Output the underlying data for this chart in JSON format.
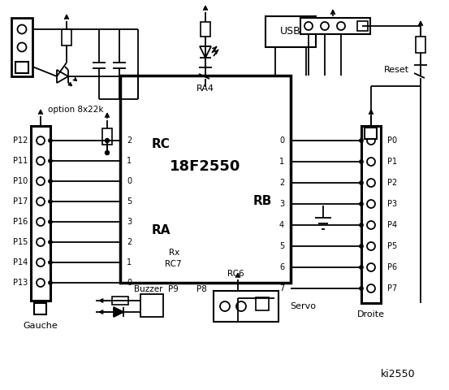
{
  "bg": "#ffffff",
  "lc": "#000000",
  "title": "ki2550",
  "chip_label": "18F2550",
  "chip_ra4": "RA4",
  "rc_label": "RC",
  "ra_label": "RA",
  "rb_label": "RB",
  "option_label": "option 8x22k",
  "usb_label": "USB",
  "reset_label": "Reset",
  "buzzer_label": "Buzzer",
  "servo_label": "Servo",
  "gauche_label": "Gauche",
  "droite_label": "Droite",
  "left_pins": [
    "P12",
    "P11",
    "P10",
    "P17",
    "P16",
    "P15",
    "P14",
    "P13"
  ],
  "right_pins": [
    "P0",
    "P1",
    "P2",
    "P3",
    "P4",
    "P5",
    "P6",
    "P7"
  ],
  "rc_pins": [
    "2",
    "1",
    "0",
    "5",
    "3",
    "2",
    "1",
    "0"
  ],
  "rb_pins": [
    "0",
    "1",
    "2",
    "3",
    "4",
    "5",
    "6",
    "7"
  ],
  "rx_label": "Rx",
  "rc7_label": "RC7",
  "rc6_label": "RC6",
  "p8_label": "P8",
  "p9_label": "P9"
}
